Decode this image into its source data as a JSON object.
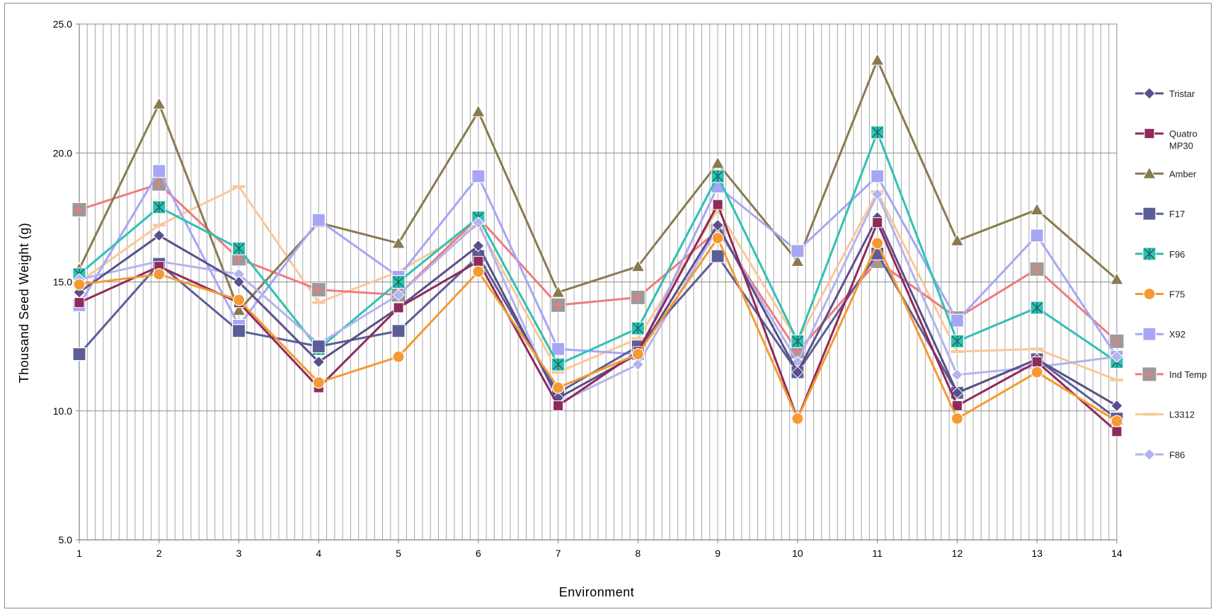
{
  "chart_data": {
    "type": "line",
    "xlabel": "Environment",
    "ylabel": "Thousand Seed Weight (g)",
    "categories": [
      "1",
      "2",
      "3",
      "4",
      "5",
      "6",
      "7",
      "8",
      "9",
      "10",
      "11",
      "12",
      "13",
      "14"
    ],
    "ylim": [
      5.0,
      25.0
    ],
    "yticks": [
      "5.0",
      "10.0",
      "15.0",
      "20.0",
      "25.0"
    ],
    "grid": true,
    "legend_position": "right",
    "series": [
      {
        "name": "Tristar",
        "color": "#5a4f8c",
        "marker": "diamond",
        "values": [
          14.6,
          16.8,
          15.0,
          11.9,
          14.0,
          16.4,
          10.5,
          12.2,
          17.2,
          11.5,
          17.5,
          10.7,
          12.0,
          10.2
        ]
      },
      {
        "name": "Quatro MP30",
        "color": "#8e2a5c",
        "marker": "square",
        "values": [
          14.2,
          15.6,
          14.2,
          10.9,
          14.0,
          15.8,
          10.2,
          12.3,
          18.0,
          9.7,
          17.3,
          10.2,
          11.9,
          9.2
        ]
      },
      {
        "name": "Amber",
        "color": "#8a7a50",
        "marker": "triangle",
        "values": [
          15.5,
          21.9,
          13.9,
          17.3,
          16.5,
          21.6,
          14.6,
          15.6,
          19.6,
          15.8,
          23.6,
          16.6,
          17.8,
          15.1
        ]
      },
      {
        "name": "F17",
        "color": "#5b5e96",
        "marker": "bigsquare",
        "values": [
          12.2,
          15.7,
          13.1,
          12.5,
          13.1,
          16.0,
          10.7,
          12.5,
          16.0,
          11.5,
          16.1,
          10.7,
          12.0,
          9.7
        ]
      },
      {
        "name": "F96",
        "color": "#2fc1b4",
        "marker": "star",
        "values": [
          15.3,
          17.9,
          16.3,
          12.4,
          15.0,
          17.5,
          11.8,
          13.2,
          19.1,
          12.7,
          20.8,
          12.7,
          14.0,
          11.9
        ]
      },
      {
        "name": "F75",
        "color": "#f59a32",
        "marker": "circle",
        "values": [
          14.9,
          15.3,
          14.3,
          11.1,
          12.1,
          15.4,
          10.9,
          12.2,
          16.7,
          9.7,
          16.5,
          9.7,
          11.5,
          9.6
        ]
      },
      {
        "name": "X92",
        "color": "#a7a6f5",
        "marker": "bigsquare",
        "values": [
          14.1,
          19.3,
          13.3,
          17.4,
          15.2,
          19.1,
          12.4,
          12.2,
          18.7,
          16.2,
          19.1,
          13.5,
          16.8,
          12.1
        ]
      },
      {
        "name": "Ind Temp",
        "color": "#ee7b7e",
        "marker": "squareplus",
        "values": [
          17.8,
          18.8,
          15.9,
          14.7,
          14.5,
          17.5,
          14.1,
          14.4,
          17.0,
          12.3,
          15.8,
          13.6,
          15.5,
          12.7
        ]
      },
      {
        "name": "L3312",
        "color": "#f9c89a",
        "marker": "dash",
        "values": [
          15.0,
          17.2,
          18.7,
          14.2,
          15.4,
          17.2,
          11.5,
          12.8,
          17.8,
          12.7,
          18.5,
          12.3,
          12.4,
          11.2
        ]
      },
      {
        "name": "F86",
        "color": "#b3b3ee",
        "marker": "diamond",
        "values": [
          15.1,
          15.8,
          15.3,
          12.6,
          14.5,
          17.3,
          10.3,
          11.8,
          17.1,
          11.9,
          18.4,
          11.4,
          11.7,
          12.1
        ]
      }
    ]
  }
}
